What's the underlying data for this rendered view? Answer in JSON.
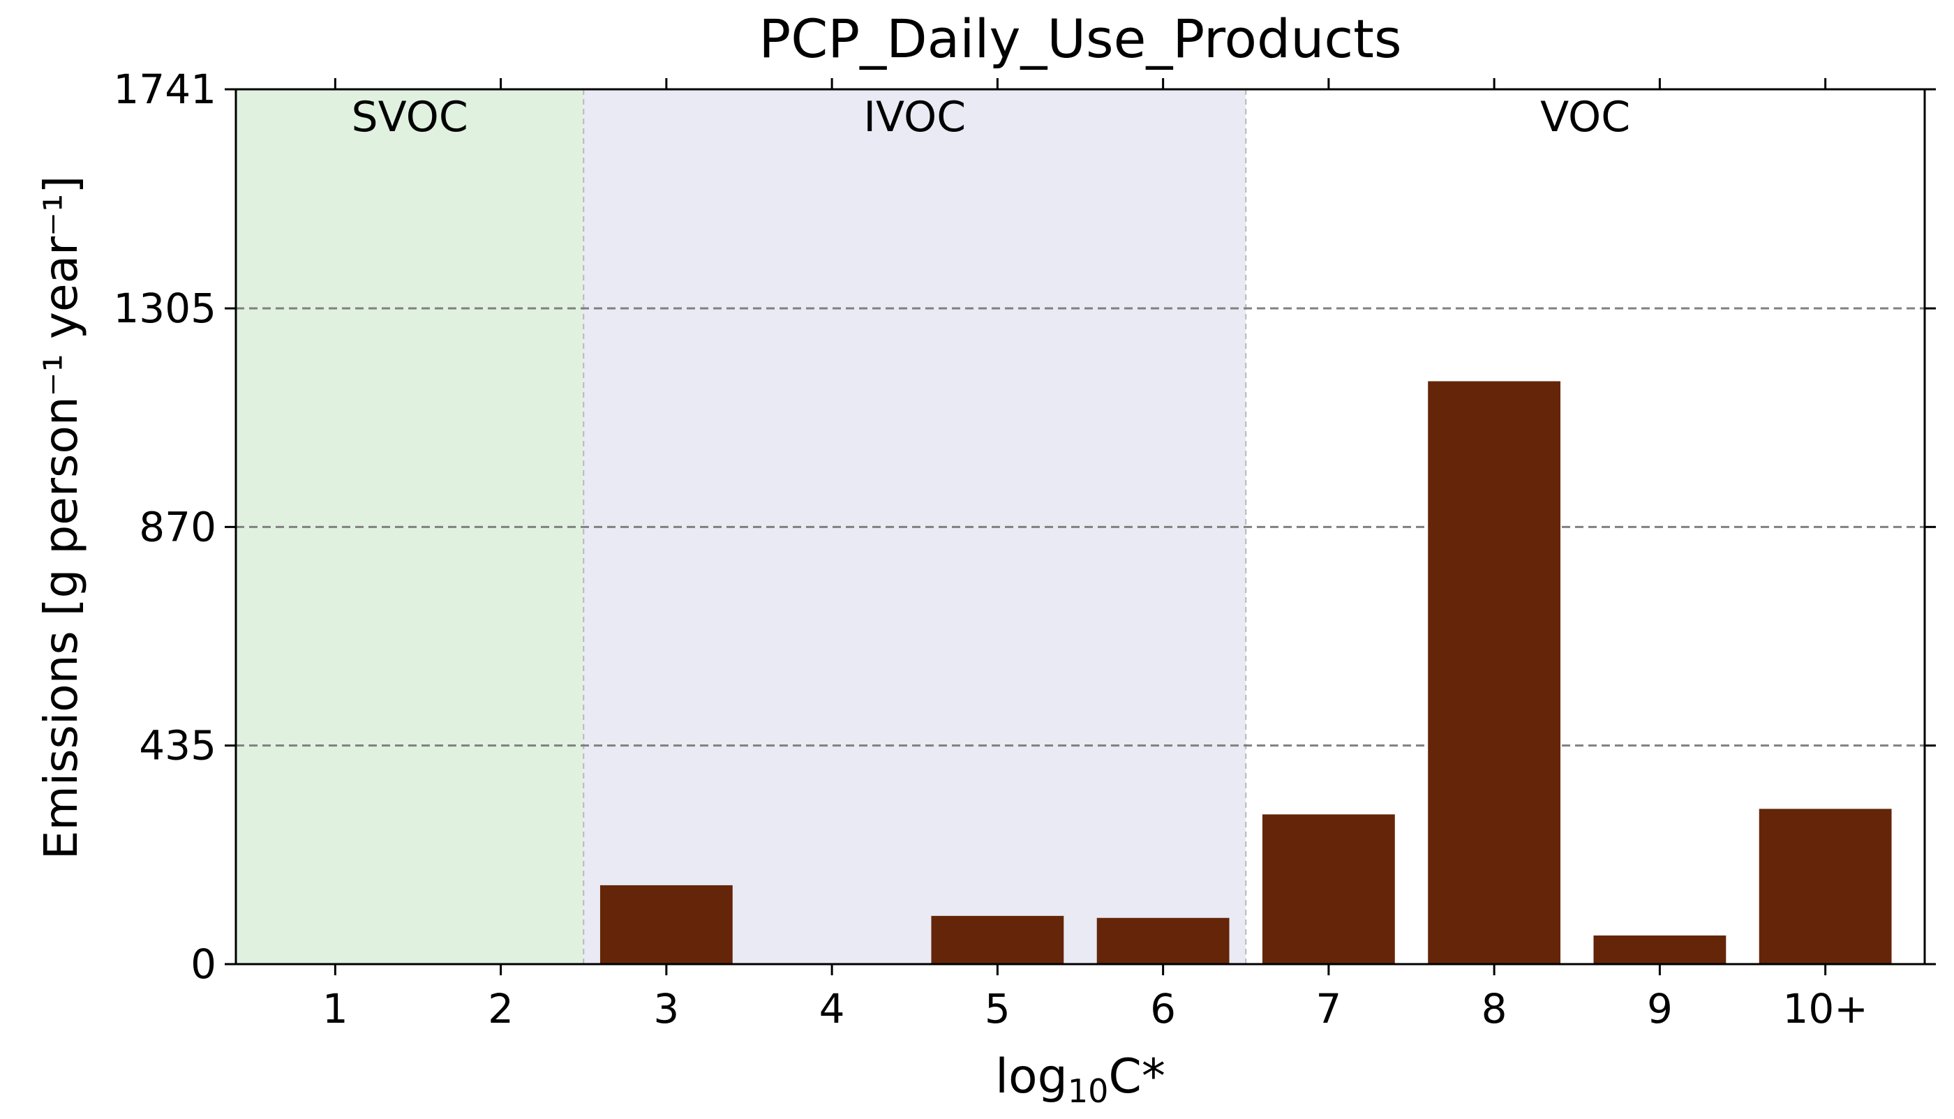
{
  "chart_data": {
    "type": "bar",
    "title": "PCP_Daily_Use_Products",
    "xlabel_base": "log",
    "xlabel_sub": "10",
    "xlabel_tail": "C*",
    "ylabel": "Emissions [g person⁻¹ year⁻¹]",
    "categories": [
      "1",
      "2",
      "3",
      "4",
      "5",
      "6",
      "7",
      "8",
      "9",
      "10+"
    ],
    "values": [
      0,
      0,
      157,
      0,
      96,
      92,
      298,
      1160,
      57,
      309
    ],
    "ylim": [
      0,
      1741
    ],
    "yticks": [
      0,
      435,
      870,
      1305,
      1741
    ],
    "grid": "horizontal dashed",
    "bar_color": "#642508",
    "regions": [
      {
        "label": "SVOC",
        "from": "1",
        "to": "2",
        "color": "#e0f1e0"
      },
      {
        "label": "IVOC",
        "from": "3",
        "to": "6",
        "color": "#eaeaf4"
      },
      {
        "label": "VOC",
        "from": "7",
        "to": "10+",
        "color": "#ffffff"
      }
    ]
  }
}
